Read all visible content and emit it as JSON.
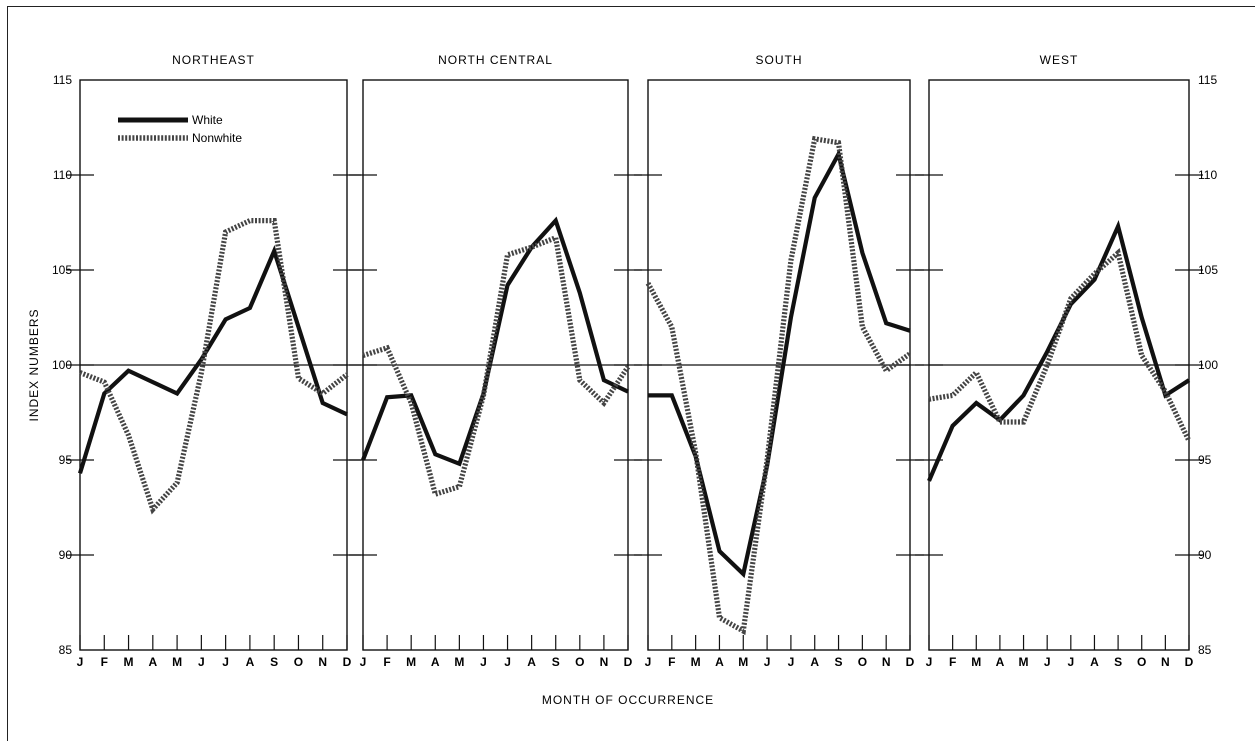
{
  "chart_data": {
    "type": "line",
    "xlabel": "MONTH OF OCCURRENCE",
    "ylabel": "INDEX NUMBERS",
    "ylim": [
      85,
      115
    ],
    "yticks": [
      85,
      90,
      95,
      100,
      105,
      110,
      115
    ],
    "x": [
      "J",
      "F",
      "M",
      "A",
      "M",
      "J",
      "J",
      "A",
      "S",
      "O",
      "N",
      "D"
    ],
    "reference_line": 100,
    "legend": [
      {
        "name": "White",
        "style": "solid",
        "color": "#111111"
      },
      {
        "name": "Nonwhite",
        "style": "dotted",
        "color": "#444444"
      }
    ],
    "legend_position": "top-left of first panel",
    "panels": [
      {
        "title": "NORTHEAST",
        "series": [
          {
            "name": "White",
            "values": [
              94.3,
              98.5,
              99.7,
              99.1,
              98.5,
              100.3,
              102.4,
              103.0,
              106.0,
              102.0,
              98.0,
              97.4
            ]
          },
          {
            "name": "Nonwhite",
            "values": [
              99.6,
              99.1,
              96.3,
              92.4,
              93.8,
              99.6,
              107.0,
              107.6,
              107.6,
              99.3,
              98.5,
              99.5
            ]
          }
        ]
      },
      {
        "title": "NORTH CENTRAL",
        "series": [
          {
            "name": "White",
            "values": [
              95.0,
              98.3,
              98.4,
              95.3,
              94.8,
              98.5,
              104.2,
              106.2,
              107.6,
              103.8,
              99.2,
              98.6
            ]
          },
          {
            "name": "Nonwhite",
            "values": [
              100.5,
              100.9,
              98.0,
              93.2,
              93.6,
              98.4,
              105.8,
              106.2,
              106.7,
              99.2,
              98.0,
              99.9
            ]
          }
        ]
      },
      {
        "title": "SOUTH",
        "series": [
          {
            "name": "White",
            "values": [
              98.4,
              98.4,
              95.2,
              90.2,
              89.0,
              94.7,
              102.5,
              108.8,
              111.1,
              105.9,
              102.2,
              101.8
            ]
          },
          {
            "name": "Nonwhite",
            "values": [
              104.3,
              102.0,
              95.4,
              86.7,
              86.0,
              95.0,
              105.5,
              111.9,
              111.7,
              102.0,
              99.7,
              100.6
            ]
          }
        ]
      },
      {
        "title": "WEST",
        "series": [
          {
            "name": "White",
            "values": [
              93.9,
              96.8,
              98.0,
              97.1,
              98.4,
              100.7,
              103.2,
              104.5,
              107.3,
              102.5,
              98.4,
              99.2
            ]
          },
          {
            "name": "Nonwhite",
            "values": [
              98.2,
              98.4,
              99.6,
              97.0,
              97.0,
              100.0,
              103.5,
              104.8,
              105.9,
              100.5,
              98.6,
              96.0
            ]
          }
        ]
      }
    ]
  }
}
